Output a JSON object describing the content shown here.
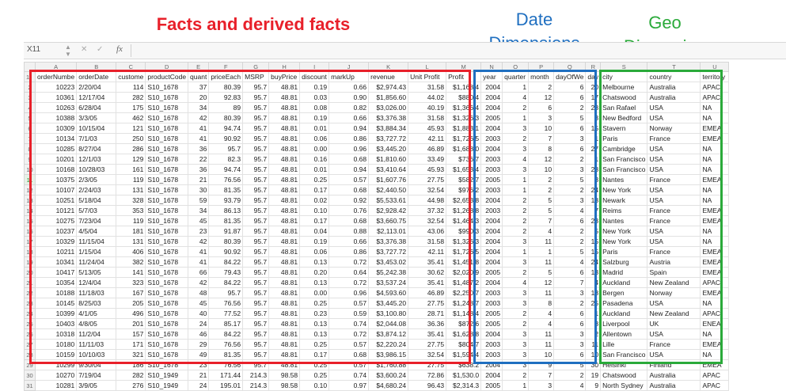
{
  "annotations": {
    "facts": "Facts and derived facts",
    "date": [
      "Date",
      "Dimensions"
    ],
    "geo": [
      "Geo",
      "Dimension"
    ]
  },
  "formula_bar": {
    "name_box": "X11",
    "cancel_icon": "cross-icon",
    "enter_icon": "check-icon",
    "fx_label": "fx"
  },
  "column_letters": [
    "A",
    "B",
    "C",
    "D",
    "E",
    "F",
    "G",
    "H",
    "I",
    "J",
    "K",
    "L",
    "M",
    "N",
    "O",
    "P",
    "Q",
    "R",
    "S",
    "T",
    "U"
  ],
  "headers": [
    "orderNumbe",
    "orderDate",
    "custome",
    "productCode",
    "quant",
    "priceEach",
    "MSRP",
    "buyPrice",
    "discount",
    "markUp",
    "revenue",
    "Unit Profit",
    "Profit",
    "year",
    "quarter",
    "month",
    "dayOfWe",
    "day",
    "city",
    "country",
    "territory"
  ],
  "row_numbers": [
    "1",
    "2",
    "3",
    "4",
    "5",
    "6",
    "7",
    "8",
    "9",
    "10",
    "11",
    "12",
    "13",
    "14",
    "15",
    "16",
    "17",
    "18",
    "19",
    "20",
    "21",
    "22",
    "23",
    "24",
    "25",
    "26",
    "27",
    "28",
    "29",
    "30",
    "31"
  ],
  "selected_row": "11",
  "rows": [
    [
      "10223",
      "2/20/04",
      "114",
      "S10_1678",
      "37",
      "80.39",
      "95.7",
      "48.81",
      "0.19",
      "0.66",
      "$2,974.43",
      "31.58",
      "$1,168.4",
      "2004",
      "1",
      "2",
      "6",
      "20",
      "Melbourne",
      "Australia",
      "APAC"
    ],
    [
      "10361",
      "12/17/04",
      "282",
      "S10_1678",
      "20",
      "92.83",
      "95.7",
      "48.81",
      "0.03",
      "0.90",
      "$1,856.60",
      "44.02",
      "$880.4",
      "2004",
      "4",
      "12",
      "6",
      "17",
      "Chatswood",
      "Australia",
      "APAC"
    ],
    [
      "10263",
      "6/28/04",
      "175",
      "S10_1678",
      "34",
      "89",
      "95.7",
      "48.81",
      "0.08",
      "0.82",
      "$3,026.00",
      "40.19",
      "$1,366.4",
      "2004",
      "2",
      "6",
      "2",
      "28",
      "San Rafael",
      "USA",
      "NA"
    ],
    [
      "10388",
      "3/3/05",
      "462",
      "S10_1678",
      "42",
      "80.39",
      "95.7",
      "48.81",
      "0.19",
      "0.66",
      "$3,376.38",
      "31.58",
      "$1,326.3",
      "2005",
      "1",
      "3",
      "5",
      "3",
      "New Bedford",
      "USA",
      "NA"
    ],
    [
      "10309",
      "10/15/04",
      "121",
      "S10_1678",
      "41",
      "94.74",
      "95.7",
      "48.81",
      "0.01",
      "0.94",
      "$3,884.34",
      "45.93",
      "$1,883.1",
      "2004",
      "3",
      "10",
      "6",
      "15",
      "Stavern",
      "Norway",
      "EMEA"
    ],
    [
      "10134",
      "7/1/03",
      "250",
      "S10_1678",
      "41",
      "90.92",
      "95.7",
      "48.81",
      "0.06",
      "0.86",
      "$3,727.72",
      "42.11",
      "$1,726.5",
      "2003",
      "2",
      "7",
      "3",
      "1",
      "Paris",
      "France",
      "EMEA"
    ],
    [
      "10285",
      "8/27/04",
      "286",
      "S10_1678",
      "36",
      "95.7",
      "95.7",
      "48.81",
      "0.00",
      "0.96",
      "$3,445.20",
      "46.89",
      "$1,688.0",
      "2004",
      "3",
      "8",
      "6",
      "27",
      "Cambridge",
      "USA",
      "NA"
    ],
    [
      "10201",
      "12/1/03",
      "129",
      "S10_1678",
      "22",
      "82.3",
      "95.7",
      "48.81",
      "0.16",
      "0.68",
      "$1,810.60",
      "33.49",
      "$736.7",
      "2003",
      "4",
      "12",
      "2",
      "1",
      "San Francisco",
      "USA",
      "NA"
    ],
    [
      "10168",
      "10/28/03",
      "161",
      "S10_1678",
      "36",
      "94.74",
      "95.7",
      "48.81",
      "0.01",
      "0.94",
      "$3,410.64",
      "45.93",
      "$1,653.4",
      "2003",
      "3",
      "10",
      "3",
      "28",
      "San Francisco",
      "USA",
      "NA"
    ],
    [
      "10375",
      "2/3/05",
      "119",
      "S10_1678",
      "21",
      "76.56",
      "95.7",
      "48.81",
      "0.25",
      "0.57",
      "$1,607.76",
      "27.75",
      "$582.7",
      "2005",
      "1",
      "2",
      "5",
      "3",
      "Nantes",
      "France",
      "EMEA"
    ],
    [
      "10107",
      "2/24/03",
      "131",
      "S10_1678",
      "30",
      "81.35",
      "95.7",
      "48.81",
      "0.17",
      "0.68",
      "$2,440.50",
      "32.54",
      "$976.2",
      "2003",
      "1",
      "2",
      "2",
      "24",
      "New York",
      "USA",
      "NA"
    ],
    [
      "10251",
      "5/18/04",
      "328",
      "S10_1678",
      "59",
      "93.79",
      "95.7",
      "48.81",
      "0.02",
      "0.92",
      "$5,533.61",
      "44.98",
      "$2,653.8",
      "2004",
      "2",
      "5",
      "3",
      "18",
      "Newark",
      "USA",
      "NA"
    ],
    [
      "10121",
      "5/7/03",
      "353",
      "S10_1678",
      "34",
      "86.13",
      "95.7",
      "48.81",
      "0.10",
      "0.76",
      "$2,928.42",
      "37.32",
      "$1,268.8",
      "2003",
      "2",
      "5",
      "4",
      "7",
      "Reims",
      "France",
      "EMEA"
    ],
    [
      "10275",
      "7/23/04",
      "119",
      "S10_1678",
      "45",
      "81.35",
      "95.7",
      "48.81",
      "0.17",
      "0.68",
      "$3,660.75",
      "32.54",
      "$1,464.3",
      "2004",
      "2",
      "7",
      "6",
      "23",
      "Nantes",
      "France",
      "EMEA"
    ],
    [
      "10237",
      "4/5/04",
      "181",
      "S10_1678",
      "23",
      "91.87",
      "95.7",
      "48.81",
      "0.04",
      "0.88",
      "$2,113.01",
      "43.06",
      "$990.3",
      "2004",
      "2",
      "4",
      "2",
      "5",
      "New York",
      "USA",
      "NA"
    ],
    [
      "10329",
      "11/15/04",
      "131",
      "S10_1678",
      "42",
      "80.39",
      "95.7",
      "48.81",
      "0.19",
      "0.66",
      "$3,376.38",
      "31.58",
      "$1,326.3",
      "2004",
      "3",
      "11",
      "2",
      "15",
      "New York",
      "USA",
      "NA"
    ],
    [
      "10211",
      "1/15/04",
      "406",
      "S10_1678",
      "41",
      "90.92",
      "95.7",
      "48.81",
      "0.06",
      "0.86",
      "$3,727.72",
      "42.11",
      "$1,726.5",
      "2004",
      "1",
      "1",
      "5",
      "15",
      "Paris",
      "France",
      "EMEA"
    ],
    [
      "10341",
      "11/24/04",
      "382",
      "S10_1678",
      "41",
      "84.22",
      "95.7",
      "48.81",
      "0.13",
      "0.72",
      "$3,453.02",
      "35.41",
      "$1,451.8",
      "2004",
      "3",
      "11",
      "4",
      "24",
      "Salzburg",
      "Austria",
      "EMEA"
    ],
    [
      "10417",
      "5/13/05",
      "141",
      "S10_1678",
      "66",
      "79.43",
      "95.7",
      "48.81",
      "0.20",
      "0.64",
      "$5,242.38",
      "30.62",
      "$2,020.9",
      "2005",
      "2",
      "5",
      "6",
      "13",
      "Madrid",
      "Spain",
      "EMEA"
    ],
    [
      "10354",
      "12/4/04",
      "323",
      "S10_1678",
      "42",
      "84.22",
      "95.7",
      "48.81",
      "0.13",
      "0.72",
      "$3,537.24",
      "35.41",
      "$1,487.2",
      "2004",
      "4",
      "12",
      "7",
      "4",
      "Auckland",
      "New Zealand",
      "APAC"
    ],
    [
      "10188",
      "11/18/03",
      "167",
      "S10_1678",
      "48",
      "95.7",
      "95.7",
      "48.81",
      "0.00",
      "0.96",
      "$4,593.60",
      "46.89",
      "$2,250.7",
      "2003",
      "3",
      "11",
      "3",
      "18",
      "Bergen",
      "Norway",
      "EMEA"
    ],
    [
      "10145",
      "8/25/03",
      "205",
      "S10_1678",
      "45",
      "76.56",
      "95.7",
      "48.81",
      "0.25",
      "0.57",
      "$3,445.20",
      "27.75",
      "$1,248.7",
      "2003",
      "3",
      "8",
      "2",
      "25",
      "Pasadena",
      "USA",
      "NA"
    ],
    [
      "10399",
      "4/1/05",
      "496",
      "S10_1678",
      "40",
      "77.52",
      "95.7",
      "48.81",
      "0.23",
      "0.59",
      "$3,100.80",
      "28.71",
      "$1,148.4",
      "2005",
      "2",
      "4",
      "6",
      "1",
      "Auckland",
      "New Zealand",
      "APAC"
    ],
    [
      "10403",
      "4/8/05",
      "201",
      "S10_1678",
      "24",
      "85.17",
      "95.7",
      "48.81",
      "0.13",
      "0.74",
      "$2,044.08",
      "36.36",
      "$872.6",
      "2005",
      "2",
      "4",
      "6",
      "8",
      "Liverpool",
      "UK",
      "ENEA"
    ],
    [
      "10318",
      "11/2/04",
      "157",
      "S10_1678",
      "46",
      "84.22",
      "95.7",
      "48.81",
      "0.13",
      "0.72",
      "$3,874.12",
      "35.41",
      "$1,628.8",
      "2004",
      "3",
      "11",
      "3",
      "2",
      "Allentown",
      "USA",
      "NA"
    ],
    [
      "10180",
      "11/11/03",
      "171",
      "S10_1678",
      "29",
      "76.56",
      "95.7",
      "48.81",
      "0.25",
      "0.57",
      "$2,220.24",
      "27.75",
      "$804.7",
      "2003",
      "3",
      "11",
      "3",
      "11",
      "Lille",
      "France",
      "EMEA"
    ],
    [
      "10159",
      "10/10/03",
      "321",
      "S10_1678",
      "49",
      "81.35",
      "95.7",
      "48.81",
      "0.17",
      "0.68",
      "$3,986.15",
      "32.54",
      "$1,594.4",
      "2003",
      "3",
      "10",
      "6",
      "10",
      "San Francisco",
      "USA",
      "NA"
    ],
    [
      "10299",
      "9/30/04",
      "186",
      "S10_1678",
      "23",
      "76.56",
      "95.7",
      "48.81",
      "0.25",
      "0.57",
      "$1,760.88",
      "27.75",
      "$638.2",
      "2004",
      "3",
      "9",
      "5",
      "30",
      "Helsinki",
      "Finland",
      "EMEA"
    ],
    [
      "10270",
      "7/19/04",
      "282",
      "S10_1949",
      "21",
      "171.44",
      "214.3",
      "98.58",
      "0.25",
      "0.74",
      "$3,600.24",
      "72.86",
      "$1,530.0",
      "2004",
      "2",
      "7",
      "2",
      "19",
      "Chatswood",
      "Australia",
      "APAC"
    ],
    [
      "10281",
      "3/9/05",
      "276",
      "S10_1949",
      "24",
      "195.01",
      "214.3",
      "98.58",
      "0.10",
      "0.97",
      "$4,680.24",
      "96.43",
      "$2,314.3",
      "2005",
      "1",
      "3",
      "4",
      "9",
      "North Sydney",
      "Australia",
      "APAC"
    ]
  ]
}
